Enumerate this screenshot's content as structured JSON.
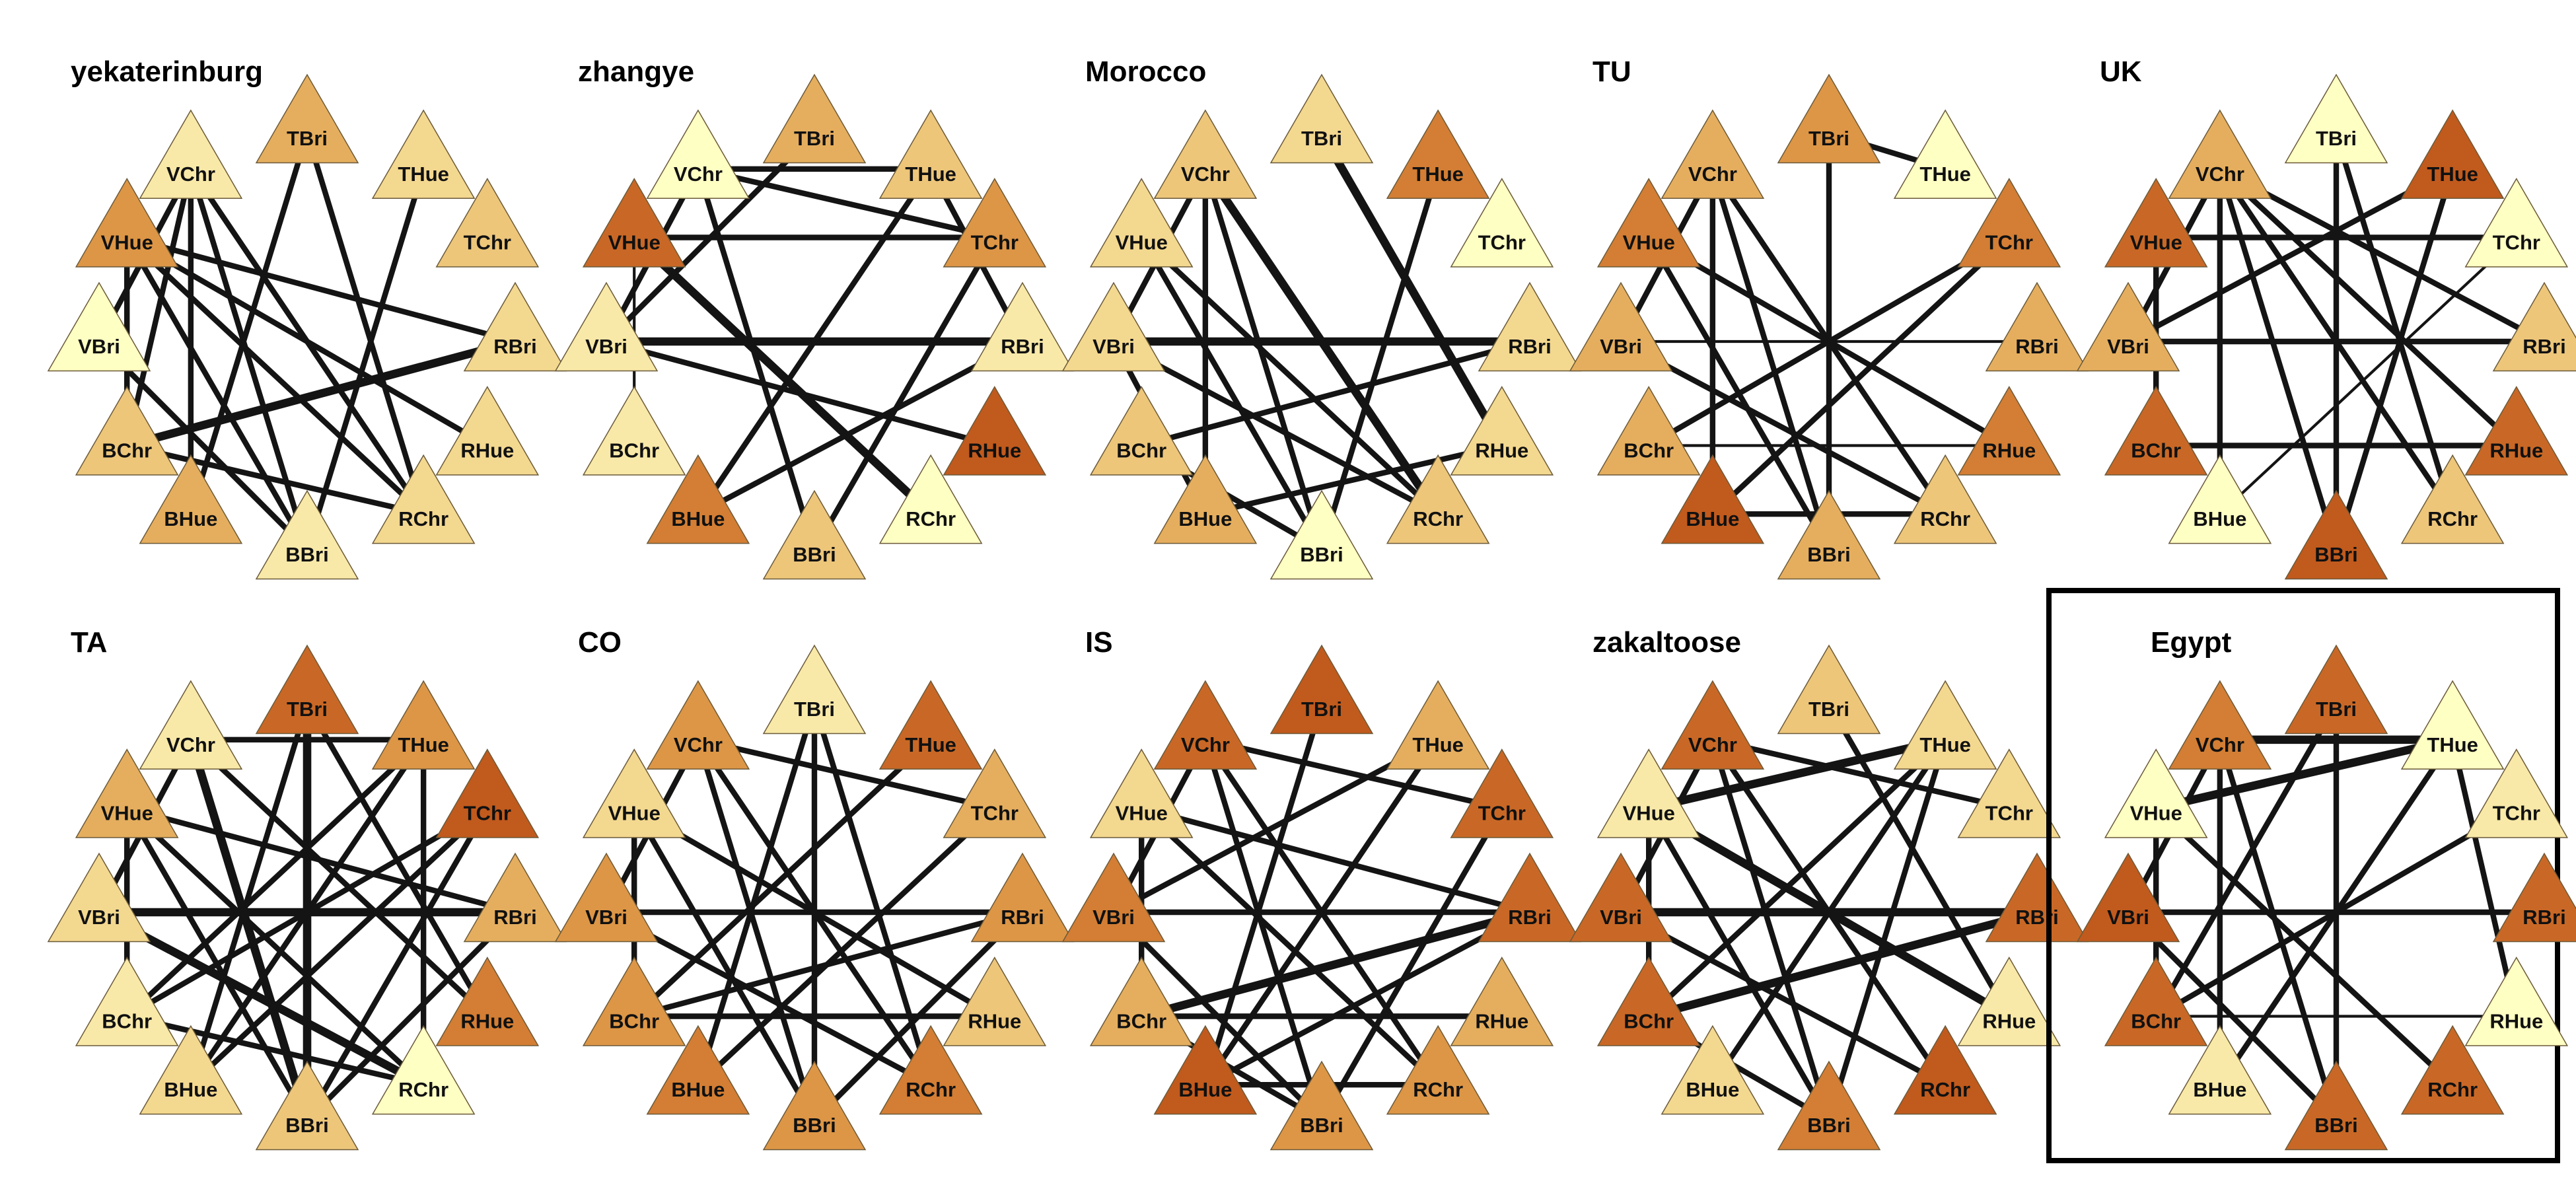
{
  "nodes": [
    "TBri",
    "THue",
    "TChr",
    "RBri",
    "RHue",
    "RChr",
    "BBri",
    "BHue",
    "BChr",
    "VBri",
    "VHue",
    "VChr"
  ],
  "palette": [
    "#FEFFC3",
    "#F8E9A8",
    "#F3D88F",
    "#EDC67A",
    "#E5AE5E",
    "#DD9646",
    "#D37E34",
    "#C96826",
    "#C15A1D"
  ],
  "edge_color": "#141414",
  "panels": [
    {
      "title": "yekaterinburg",
      "highlighted": false,
      "node_levels": [
        4,
        2,
        3,
        2,
        2,
        2,
        1,
        4,
        3,
        0,
        5,
        1
      ],
      "edges": [
        [
          11,
          6,
          2
        ],
        [
          11,
          8,
          2
        ],
        [
          11,
          5,
          2
        ],
        [
          0,
          7,
          2
        ],
        [
          1,
          6,
          2
        ],
        [
          10,
          3,
          2
        ],
        [
          8,
          3,
          3
        ],
        [
          10,
          6,
          2
        ],
        [
          10,
          5,
          2
        ],
        [
          9,
          6,
          2
        ],
        [
          11,
          7,
          2
        ],
        [
          10,
          4,
          2
        ],
        [
          0,
          5,
          2
        ],
        [
          10,
          8,
          2
        ],
        [
          9,
          11,
          2
        ],
        [
          8,
          5,
          2
        ]
      ]
    },
    {
      "title": "zhangye",
      "highlighted": false,
      "node_levels": [
        4,
        3,
        5,
        1,
        8,
        0,
        3,
        6,
        1,
        1,
        7,
        0
      ],
      "edges": [
        [
          11,
          1,
          2
        ],
        [
          11,
          2,
          2
        ],
        [
          10,
          2,
          2
        ],
        [
          9,
          3,
          3
        ],
        [
          9,
          4,
          2
        ],
        [
          0,
          9,
          2
        ],
        [
          1,
          7,
          2
        ],
        [
          10,
          5,
          3
        ],
        [
          11,
          6,
          2
        ],
        [
          2,
          6,
          2
        ],
        [
          3,
          7,
          2
        ],
        [
          10,
          8,
          1
        ],
        [
          11,
          9,
          2
        ],
        [
          1,
          3,
          2
        ]
      ]
    },
    {
      "title": "Morocco",
      "highlighted": false,
      "node_levels": [
        2,
        6,
        0,
        2,
        2,
        3,
        0,
        4,
        3,
        2,
        2,
        3
      ],
      "edges": [
        [
          0,
          4,
          3
        ],
        [
          9,
          3,
          3
        ],
        [
          11,
          5,
          3
        ],
        [
          11,
          6,
          2
        ],
        [
          9,
          5,
          2
        ],
        [
          10,
          6,
          2
        ],
        [
          8,
          3,
          2
        ],
        [
          11,
          7,
          2
        ],
        [
          10,
          5,
          2
        ],
        [
          9,
          7,
          2
        ],
        [
          7,
          4,
          2
        ],
        [
          9,
          11,
          2
        ],
        [
          1,
          6,
          2
        ],
        [
          8,
          6,
          2
        ]
      ]
    },
    {
      "title": "TU",
      "highlighted": false,
      "node_levels": [
        5,
        0,
        6,
        4,
        6,
        3,
        4,
        8,
        4,
        4,
        6,
        4
      ],
      "edges": [
        [
          0,
          1,
          2
        ],
        [
          11,
          6,
          2
        ],
        [
          11,
          5,
          2
        ],
        [
          9,
          3,
          1
        ],
        [
          10,
          4,
          2
        ],
        [
          8,
          2,
          2
        ],
        [
          11,
          7,
          2
        ],
        [
          9,
          5,
          2
        ],
        [
          10,
          6,
          2
        ],
        [
          0,
          6,
          2
        ],
        [
          9,
          11,
          2
        ],
        [
          2,
          7,
          2
        ],
        [
          8,
          4,
          1
        ],
        [
          7,
          5,
          2
        ]
      ]
    },
    {
      "title": "UK",
      "highlighted": false,
      "node_levels": [
        0,
        8,
        0,
        3,
        7,
        3,
        8,
        0,
        7,
        4,
        7,
        4
      ],
      "edges": [
        [
          11,
          6,
          2
        ],
        [
          11,
          4,
          2
        ],
        [
          10,
          2,
          2
        ],
        [
          9,
          3,
          2
        ],
        [
          9,
          1,
          2
        ],
        [
          11,
          5,
          2
        ],
        [
          0,
          5,
          2
        ],
        [
          0,
          6,
          2
        ],
        [
          10,
          8,
          2
        ],
        [
          11,
          7,
          2
        ],
        [
          8,
          4,
          2
        ],
        [
          9,
          11,
          2
        ],
        [
          1,
          6,
          2
        ],
        [
          2,
          7,
          1
        ],
        [
          11,
          3,
          2
        ]
      ]
    },
    {
      "title": "TA",
      "highlighted": false,
      "node_levels": [
        7,
        5,
        8,
        4,
        6,
        0,
        3,
        2,
        1,
        2,
        4,
        1
      ],
      "edges": [
        [
          11,
          1,
          2
        ],
        [
          0,
          6,
          3
        ],
        [
          11,
          6,
          3
        ],
        [
          0,
          7,
          2
        ],
        [
          1,
          7,
          2
        ],
        [
          10,
          3,
          2
        ],
        [
          9,
          3,
          3
        ],
        [
          8,
          2,
          2
        ],
        [
          11,
          4,
          2
        ],
        [
          0,
          4,
          2
        ],
        [
          10,
          5,
          2
        ],
        [
          9,
          5,
          3
        ],
        [
          1,
          8,
          2
        ],
        [
          2,
          6,
          2
        ],
        [
          10,
          6,
          2
        ],
        [
          1,
          5,
          2
        ],
        [
          11,
          9,
          2
        ],
        [
          10,
          8,
          2
        ],
        [
          3,
          6,
          2
        ],
        [
          8,
          5,
          2
        ],
        [
          7,
          2,
          2
        ]
      ]
    },
    {
      "title": "CO",
      "highlighted": false,
      "node_levels": [
        1,
        7,
        4,
        5,
        3,
        6,
        5,
        6,
        5,
        5,
        2,
        5
      ],
      "edges": [
        [
          0,
          6,
          2
        ],
        [
          0,
          7,
          2
        ],
        [
          0,
          5,
          2
        ],
        [
          11,
          5,
          2
        ],
        [
          10,
          4,
          2
        ],
        [
          9,
          3,
          2
        ],
        [
          8,
          3,
          2
        ],
        [
          11,
          6,
          2
        ],
        [
          10,
          6,
          2
        ],
        [
          1,
          8,
          2
        ],
        [
          2,
          7,
          2
        ],
        [
          11,
          2,
          2
        ],
        [
          9,
          5,
          2
        ],
        [
          10,
          8,
          2
        ],
        [
          11,
          9,
          2
        ],
        [
          8,
          4,
          2
        ],
        [
          3,
          6,
          2
        ]
      ]
    },
    {
      "title": "IS",
      "highlighted": false,
      "node_levels": [
        8,
        4,
        7,
        7,
        4,
        5,
        5,
        8,
        4,
        6,
        2,
        7
      ],
      "edges": [
        [
          11,
          2,
          2
        ],
        [
          10,
          3,
          2
        ],
        [
          9,
          3,
          2
        ],
        [
          8,
          3,
          3
        ],
        [
          11,
          6,
          2
        ],
        [
          11,
          5,
          2
        ],
        [
          1,
          7,
          2
        ],
        [
          0,
          7,
          2
        ],
        [
          9,
          6,
          2
        ],
        [
          10,
          5,
          2
        ],
        [
          8,
          4,
          2
        ],
        [
          1,
          9,
          2
        ],
        [
          3,
          7,
          2
        ],
        [
          8,
          6,
          2
        ],
        [
          11,
          9,
          2
        ],
        [
          10,
          8,
          2
        ],
        [
          2,
          6,
          2
        ],
        [
          7,
          5,
          2
        ]
      ]
    },
    {
      "title": "zakaltoose",
      "highlighted": false,
      "node_levels": [
        3,
        2,
        2,
        7,
        1,
        8,
        6,
        2,
        7,
        7,
        1,
        7
      ],
      "edges": [
        [
          10,
          1,
          3
        ],
        [
          9,
          3,
          3
        ],
        [
          8,
          3,
          3
        ],
        [
          11,
          6,
          2
        ],
        [
          1,
          7,
          2
        ],
        [
          1,
          6,
          2
        ],
        [
          10,
          4,
          3
        ],
        [
          0,
          4,
          2
        ],
        [
          11,
          2,
          2
        ],
        [
          9,
          5,
          2
        ],
        [
          10,
          6,
          2
        ],
        [
          1,
          8,
          2
        ],
        [
          8,
          6,
          2
        ],
        [
          11,
          9,
          2
        ],
        [
          10,
          8,
          2
        ],
        [
          11,
          5,
          2
        ]
      ]
    },
    {
      "title": "Egypt",
      "highlighted": true,
      "node_levels": [
        7,
        0,
        1,
        7,
        0,
        7,
        7,
        1,
        7,
        8,
        0,
        6
      ],
      "edges": [
        [
          11,
          1,
          3
        ],
        [
          10,
          1,
          3
        ],
        [
          9,
          3,
          2
        ],
        [
          1,
          4,
          2
        ],
        [
          0,
          6,
          2
        ],
        [
          1,
          7,
          2
        ],
        [
          11,
          6,
          2
        ],
        [
          10,
          5,
          2
        ],
        [
          8,
          4,
          1
        ],
        [
          11,
          7,
          2
        ],
        [
          9,
          6,
          2
        ],
        [
          10,
          8,
          2
        ],
        [
          11,
          9,
          2
        ],
        [
          0,
          8,
          2
        ],
        [
          2,
          8,
          2
        ]
      ]
    }
  ]
}
